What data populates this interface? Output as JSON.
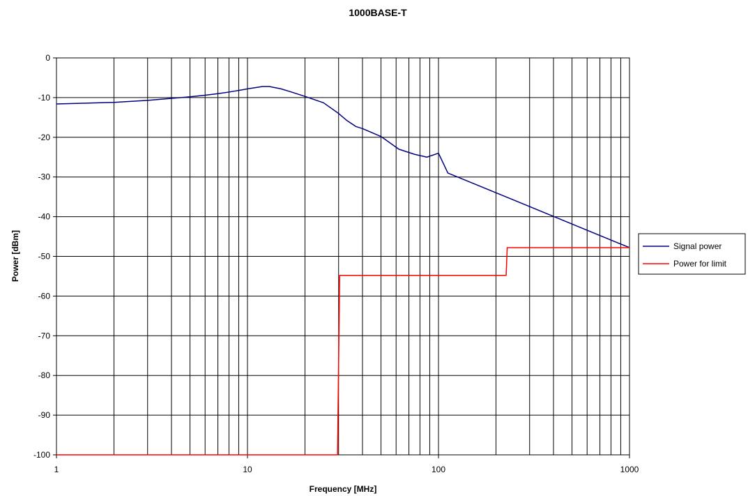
{
  "chart_data": {
    "type": "line",
    "title": "1000BASE-T",
    "xlabel": "Frequency [MHz]",
    "ylabel": "Power [dBm]",
    "xscale": "log",
    "xlim": [
      1,
      1000
    ],
    "ylim": [
      -100,
      0
    ],
    "x_ticks": [
      {
        "value": 1,
        "label": "1"
      },
      {
        "value": 10,
        "label": "10"
      },
      {
        "value": 100,
        "label": "100"
      },
      {
        "value": 1000,
        "label": "1000"
      }
    ],
    "y_ticks": [
      {
        "value": 0,
        "label": "0"
      },
      {
        "value": -10,
        "label": "-10"
      },
      {
        "value": -20,
        "label": "-20"
      },
      {
        "value": -30,
        "label": "-30"
      },
      {
        "value": -40,
        "label": "-40"
      },
      {
        "value": -50,
        "label": "-50"
      },
      {
        "value": -60,
        "label": "-60"
      },
      {
        "value": -70,
        "label": "-70"
      },
      {
        "value": -80,
        "label": "-80"
      },
      {
        "value": -90,
        "label": "-90"
      },
      {
        "value": -100,
        "label": "-100"
      }
    ],
    "grid": {
      "x_major": true,
      "x_minor": true,
      "y_major": true
    },
    "legend": {
      "placement": "right"
    },
    "series": [
      {
        "name": "Signal power",
        "color": "#000080",
        "points": [
          {
            "x": 1,
            "y": -11.6
          },
          {
            "x": 2,
            "y": -11.2
          },
          {
            "x": 3,
            "y": -10.7
          },
          {
            "x": 4,
            "y": -10.2
          },
          {
            "x": 5,
            "y": -9.8
          },
          {
            "x": 6,
            "y": -9.4
          },
          {
            "x": 7,
            "y": -9.0
          },
          {
            "x": 8,
            "y": -8.6
          },
          {
            "x": 9,
            "y": -8.2
          },
          {
            "x": 10,
            "y": -7.8
          },
          {
            "x": 12,
            "y": -7.2
          },
          {
            "x": 13,
            "y": -7.2
          },
          {
            "x": 15,
            "y": -7.8
          },
          {
            "x": 17,
            "y": -8.6
          },
          {
            "x": 20,
            "y": -9.7
          },
          {
            "x": 25,
            "y": -11.3
          },
          {
            "x": 30,
            "y": -14.0
          },
          {
            "x": 33,
            "y": -15.7
          },
          {
            "x": 37,
            "y": -17.3
          },
          {
            "x": 40,
            "y": -17.8
          },
          {
            "x": 50,
            "y": -19.8
          },
          {
            "x": 62,
            "y": -23.0
          },
          {
            "x": 75,
            "y": -24.3
          },
          {
            "x": 87,
            "y": -25.0
          },
          {
            "x": 100,
            "y": -24.0
          },
          {
            "x": 112,
            "y": -29.0
          },
          {
            "x": 1000,
            "y": -47.8
          }
        ]
      },
      {
        "name": "Power for limit",
        "color": "#ff0000",
        "points": [
          {
            "x": 1,
            "y": -100
          },
          {
            "x": 29.6,
            "y": -100
          },
          {
            "x": 30.4,
            "y": -54.8
          },
          {
            "x": 226,
            "y": -54.8
          },
          {
            "x": 229,
            "y": -47.8
          },
          {
            "x": 1000,
            "y": -47.8
          }
        ]
      }
    ]
  }
}
